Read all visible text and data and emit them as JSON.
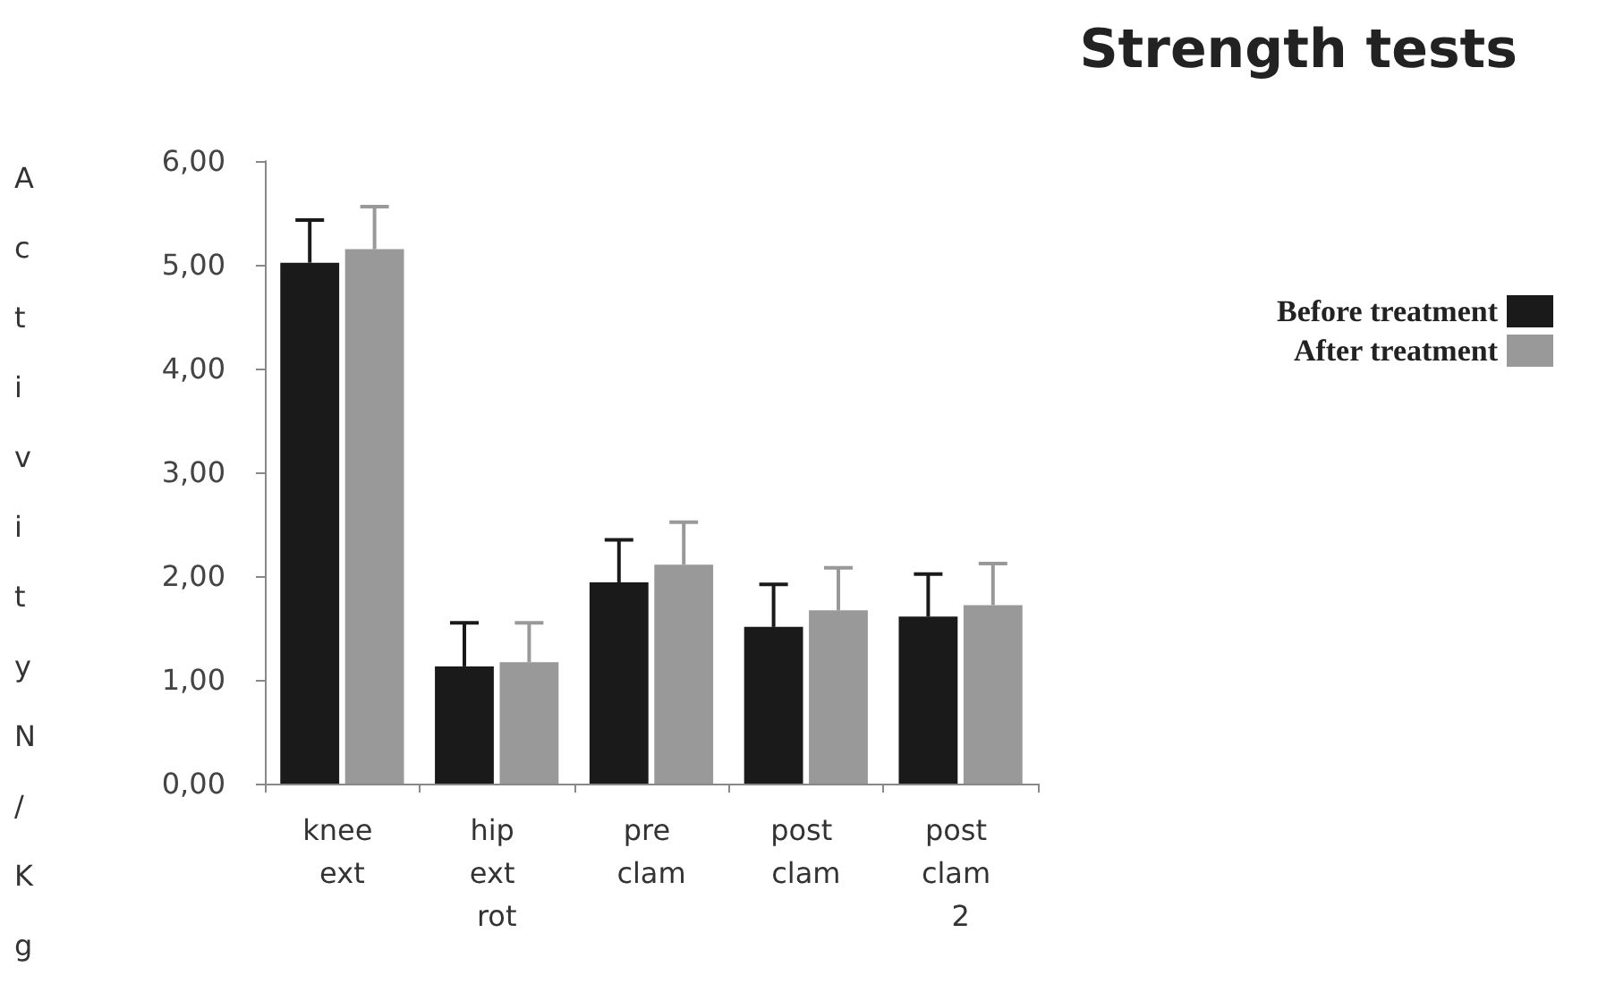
{
  "chart_data": {
    "type": "bar",
    "title": "Strength tests",
    "ylabel": "Activity N/Kg",
    "categories": [
      "knee ext",
      "hip ext rot",
      "pre clam",
      "post clam",
      "post clam 2"
    ],
    "series": [
      {
        "name": "Before treatment",
        "color": "#1a1a1a",
        "values": [
          5.02,
          1.13,
          1.94,
          1.51,
          1.61
        ],
        "errors": [
          [
            5.02,
            5.43
          ],
          [
            1.13,
            1.55
          ],
          [
            1.94,
            2.35
          ],
          [
            1.51,
            1.92
          ],
          [
            1.61,
            2.02
          ]
        ]
      },
      {
        "name": "After treatment",
        "color": "#999999",
        "values": [
          5.15,
          1.17,
          2.11,
          1.67,
          1.72
        ],
        "errors": [
          [
            5.15,
            5.56
          ],
          [
            1.17,
            1.55
          ],
          [
            2.11,
            2.52
          ],
          [
            1.67,
            2.08
          ],
          [
            1.72,
            2.12
          ]
        ]
      }
    ],
    "ylim": [
      0,
      6
    ],
    "yticks": [
      {
        "value": 0,
        "label": "0,00"
      },
      {
        "value": 1,
        "label": "1,00"
      },
      {
        "value": 2,
        "label": "2,00"
      },
      {
        "value": 3,
        "label": "3,00"
      },
      {
        "value": 4,
        "label": "4,00"
      },
      {
        "value": 5,
        "label": "5,00"
      },
      {
        "value": 6,
        "label": "6,00"
      }
    ],
    "grid": false,
    "legend": "right"
  }
}
